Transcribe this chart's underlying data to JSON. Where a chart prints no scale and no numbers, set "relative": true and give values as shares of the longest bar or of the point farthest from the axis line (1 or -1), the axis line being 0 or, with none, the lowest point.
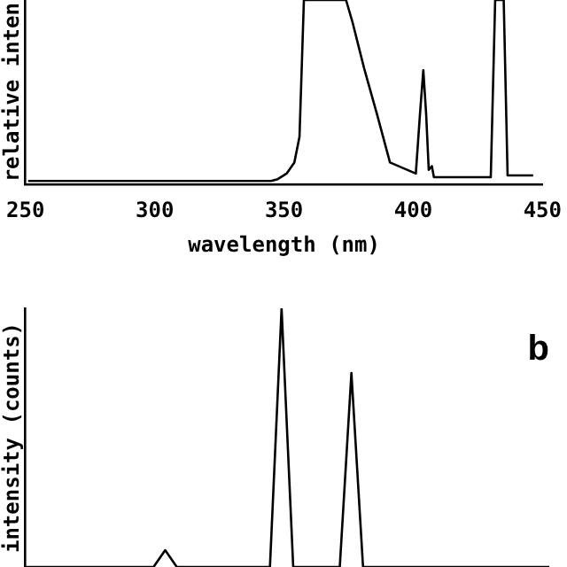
{
  "chart_data": [
    {
      "type": "line",
      "relative": true,
      "xlabel": "wavelength (nm)",
      "ylabel": "relative inten",
      "xlim": [
        250,
        450
      ],
      "xticks": [
        250,
        300,
        350,
        400,
        450
      ],
      "grid": false,
      "legend": false,
      "marker": "none",
      "series": [
        {
          "color": "#000000",
          "x": [
            251,
            345,
            347.6,
            351,
            354,
            356,
            357.7,
            374,
            376.5,
            381,
            386,
            391,
            396,
            401,
            402.6,
            403.9,
            405,
            406,
            407.2,
            408,
            430,
            431.7,
            435,
            436.5,
            446.4
          ],
          "values": [
            0.02,
            0.02,
            0.03,
            0.06,
            0.12,
            0.26,
            1,
            1,
            0.88,
            0.63,
            0.38,
            0.12,
            0.09,
            0.06,
            0.38,
            0.62,
            0.38,
            0.08,
            0.1,
            0.04,
            0.04,
            1,
            1,
            0.05,
            0.05
          ]
        }
      ]
    },
    {
      "type": "line",
      "relative": true,
      "ylabel": "intensity (counts)",
      "grid": false,
      "legend": false,
      "marker": "none",
      "annotations": [
        "b"
      ],
      "categories": [
        null,
        null,
        null,
        null,
        null,
        null,
        null,
        null,
        null,
        null,
        null,
        null,
        null,
        null,
        null,
        null,
        null,
        null,
        null,
        null,
        null,
        null,
        null,
        null,
        null,
        null,
        null,
        null,
        null,
        null,
        null,
        null,
        null,
        null,
        null,
        null,
        null,
        null,
        null,
        null,
        null,
        null,
        null,
        null,
        null,
        null
      ],
      "series": [
        {
          "color": "#000000",
          "values": [
            0,
            0,
            0,
            0,
            0,
            0,
            0,
            0,
            0,
            0,
            0,
            0,
            0.065,
            0,
            0,
            0,
            0,
            0,
            0,
            0,
            0,
            0,
            1,
            0,
            0,
            0,
            0,
            0,
            0.75,
            0,
            0,
            0,
            0,
            0,
            0,
            0,
            0,
            0,
            0,
            0,
            0,
            0,
            0,
            0,
            0,
            0
          ]
        }
      ]
    }
  ]
}
